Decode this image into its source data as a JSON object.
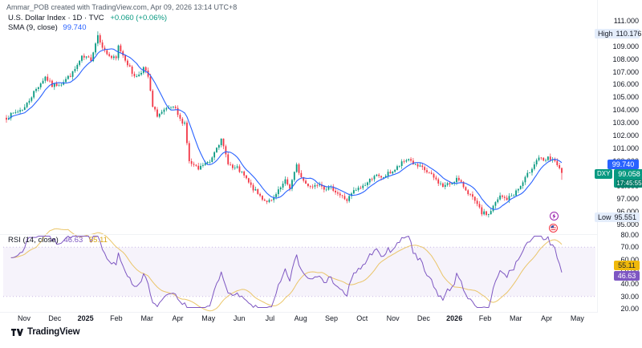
{
  "header": {
    "attribution": "Ammar_POB created with TradingView.com, Apr 09, 2026 13:14 UTC+8"
  },
  "main_chart": {
    "legend": {
      "symbol_line": "U.S. Dollar Index · 1D · TVC",
      "change": "+0.060 (+0.06%)",
      "sma_label": "SMA (9, close)",
      "sma_value": "99.740"
    },
    "badges": {
      "high_label": "High",
      "high_value": "110.176",
      "low_label": "Low",
      "low_value": "95.551",
      "sma_value": "99.740",
      "symbol_chip": "DXY",
      "last_price": "99.058",
      "countdown": "17:45:55"
    },
    "y_axis_labels": [
      "111.000",
      "110.000",
      "109.000",
      "108.000",
      "107.000",
      "106.000",
      "105.000",
      "104.000",
      "103.000",
      "102.000",
      "101.000",
      "100.000",
      "99.000",
      "98.000",
      "97.000",
      "96.000",
      "95.000"
    ],
    "event_markers": [
      {
        "type": "economic-event",
        "icon": "lightning-bolt"
      },
      {
        "type": "us-economic-event",
        "icon": "us-flag"
      }
    ]
  },
  "rsi_panel": {
    "legend_label": "RSI (14, close)",
    "rsi_value": "46.63",
    "ma_value": "55.11",
    "y_axis_labels": [
      "80.00",
      "70.00",
      "60.00",
      "50.00",
      "40.00",
      "30.00",
      "20.00"
    ]
  },
  "x_axis": {
    "labels": [
      "Nov",
      "Dec",
      "2025",
      "Feb",
      "Mar",
      "Apr",
      "May",
      "Jun",
      "Jul",
      "Aug",
      "Sep",
      "Oct",
      "Nov",
      "Dec",
      "2026",
      "Feb",
      "Mar",
      "Apr",
      "May"
    ]
  },
  "footer": {
    "logo_text": "TradingView"
  },
  "colors": {
    "up": "#089981",
    "down": "#F23645",
    "sma": "#2962FF",
    "rsi": "#7E57C2",
    "rsi_ma": "#E8BC50",
    "last_badge": "#089981",
    "sma_badge": "#2962FF",
    "high_low_badge_bg": "#E4EDFB",
    "rsi_badge": "#7E57C2",
    "rsi_ma_badge": "#F0B90B"
  },
  "chart_data": {
    "type": "candlestick",
    "title": "U.S. Dollar Index (DXY) · 1D · TVC with SMA(9) and RSI(14) pane",
    "interval": "1D",
    "price_axis_range": [
      95,
      111
    ],
    "high": 110.176,
    "low": 95.551,
    "last_close": 99.058,
    "change_abs": 0.06,
    "change_pct": 0.06,
    "sma9_last": 99.74,
    "rsi14_last": 46.63,
    "rsi_ma_last": 55.11,
    "num_candles": 244,
    "seed": 7,
    "close_anchors": [
      [
        0,
        103.4
      ],
      [
        4,
        103.8
      ],
      [
        8,
        104.2
      ],
      [
        12,
        105.4
      ],
      [
        17,
        106.6
      ],
      [
        20,
        105.9
      ],
      [
        24,
        106.1
      ],
      [
        29,
        106.9
      ],
      [
        33,
        108.1
      ],
      [
        37,
        108.0
      ],
      [
        40,
        109.9
      ],
      [
        43,
        108.6
      ],
      [
        46,
        108.1
      ],
      [
        48,
        108.0
      ],
      [
        49,
        109.0
      ],
      [
        52,
        108.0
      ],
      [
        55,
        106.9
      ],
      [
        57,
        106.6
      ],
      [
        60,
        107.3
      ],
      [
        62,
        106.6
      ],
      [
        64,
        104.2
      ],
      [
        66,
        103.6
      ],
      [
        69,
        103.9
      ],
      [
        72,
        104.2
      ],
      [
        74,
        104.0
      ],
      [
        76,
        103.2
      ],
      [
        78,
        103.0
      ],
      [
        80,
        99.9
      ],
      [
        84,
        99.3
      ],
      [
        86,
        99.7
      ],
      [
        89,
        99.9
      ],
      [
        92,
        101.2
      ],
      [
        94,
        101.6
      ],
      [
        97,
        99.9
      ],
      [
        99,
        99.4
      ],
      [
        101,
        99.4
      ],
      [
        104,
        98.8
      ],
      [
        107,
        98.0
      ],
      [
        110,
        97.4
      ],
      [
        113,
        96.9
      ],
      [
        116,
        96.8
      ],
      [
        119,
        97.6
      ],
      [
        122,
        98.4
      ],
      [
        124,
        97.9
      ],
      [
        127,
        99.6
      ],
      [
        129,
        98.7
      ],
      [
        131,
        98.2
      ],
      [
        134,
        98.0
      ],
      [
        137,
        98.3
      ],
      [
        139,
        97.9
      ],
      [
        143,
        97.8
      ],
      [
        146,
        97.3
      ],
      [
        149,
        96.9
      ],
      [
        152,
        97.6
      ],
      [
        155,
        97.9
      ],
      [
        158,
        98.3
      ],
      [
        161,
        98.9
      ],
      [
        164,
        98.6
      ],
      [
        167,
        99.0
      ],
      [
        170,
        99.3
      ],
      [
        173,
        99.8
      ],
      [
        176,
        100.2
      ],
      [
        179,
        99.6
      ],
      [
        182,
        99.4
      ],
      [
        185,
        99.0
      ],
      [
        188,
        98.5
      ],
      [
        191,
        98.0
      ],
      [
        194,
        98.2
      ],
      [
        197,
        98.6
      ],
      [
        200,
        98.0
      ],
      [
        203,
        97.3
      ],
      [
        206,
        96.5
      ],
      [
        208,
        95.9
      ],
      [
        211,
        95.8
      ],
      [
        213,
        96.4
      ],
      [
        216,
        97.2
      ],
      [
        219,
        97.0
      ],
      [
        222,
        97.4
      ],
      [
        225,
        98.0
      ],
      [
        228,
        98.9
      ],
      [
        231,
        99.8
      ],
      [
        233,
        100.3
      ],
      [
        235,
        99.9
      ],
      [
        237,
        100.2
      ],
      [
        239,
        100.1
      ],
      [
        241,
        99.6
      ],
      [
        243,
        99.058
      ]
    ],
    "high_anchor": {
      "index": 40,
      "price": 110.176
    },
    "low_anchor": {
      "index": 211,
      "price": 95.551
    },
    "overlays": [
      {
        "name": "SMA",
        "length": 9,
        "source": "close",
        "last": 99.74
      }
    ],
    "rsi": {
      "length": 14,
      "source": "close",
      "overbought": 70,
      "oversold": 50,
      "band": [
        30,
        70
      ],
      "axis_range": [
        20,
        80
      ],
      "last": 46.63,
      "ma_length": 14,
      "ma_last": 55.11
    }
  }
}
